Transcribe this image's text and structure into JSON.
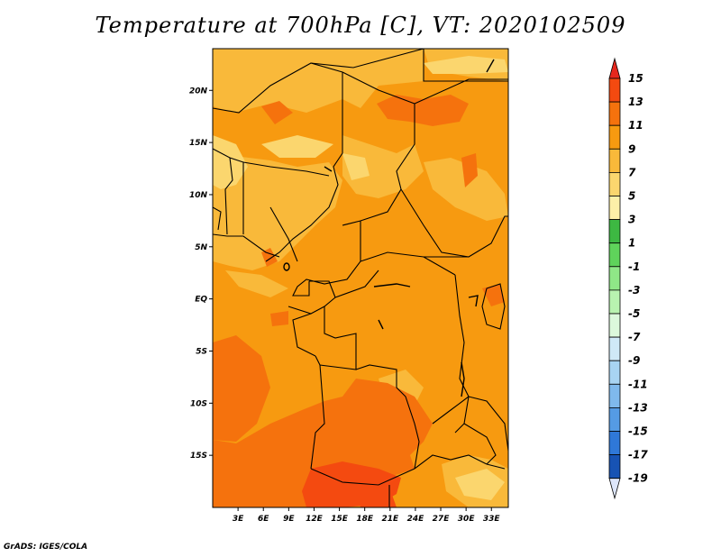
{
  "title": "Temperature at 700hPa [C], VT: 2020102509",
  "credit": "GrADS: IGES/COLA",
  "map": {
    "lon_range": [
      0,
      35
    ],
    "lat_range": [
      -20,
      24
    ],
    "lat_ticks": [
      {
        "value": 20,
        "label": "20N"
      },
      {
        "value": 15,
        "label": "15N"
      },
      {
        "value": 10,
        "label": "10N"
      },
      {
        "value": 5,
        "label": "5N"
      },
      {
        "value": 0,
        "label": "EQ"
      },
      {
        "value": -5,
        "label": "5S"
      },
      {
        "value": -10,
        "label": "10S"
      },
      {
        "value": -15,
        "label": "15S"
      }
    ],
    "lon_ticks": [
      {
        "value": 3,
        "label": "3E"
      },
      {
        "value": 6,
        "label": "6E"
      },
      {
        "value": 9,
        "label": "9E"
      },
      {
        "value": 12,
        "label": "12E"
      },
      {
        "value": 15,
        "label": "15E"
      },
      {
        "value": 18,
        "label": "18E"
      },
      {
        "value": 21,
        "label": "21E"
      },
      {
        "value": 24,
        "label": "24E"
      },
      {
        "value": 27,
        "label": "27E"
      },
      {
        "value": 30,
        "label": "30E"
      },
      {
        "value": 33,
        "label": "33E"
      }
    ]
  },
  "legend": {
    "bands": [
      {
        "color": "#e6271d",
        "upper": 15
      },
      {
        "color": "#f44a10",
        "upper": 13
      },
      {
        "color": "#f5720d",
        "upper": 11
      },
      {
        "color": "#f79a10",
        "upper": 9
      },
      {
        "color": "#f9b93a",
        "upper": 7
      },
      {
        "color": "#fbd66e",
        "upper": 5
      },
      {
        "color": "#fdf0a8",
        "upper": 3
      },
      {
        "color": "#3db842",
        "upper": 1
      },
      {
        "color": "#5fd35b",
        "upper": -1
      },
      {
        "color": "#8fe787",
        "upper": -3
      },
      {
        "color": "#b8f3b0",
        "upper": -5
      },
      {
        "color": "#dcf9dc",
        "upper": -7
      },
      {
        "color": "#cfe9f7",
        "upper": -9
      },
      {
        "color": "#a8d4f2",
        "upper": -11
      },
      {
        "color": "#7fb9ec",
        "upper": -13
      },
      {
        "color": "#559be4",
        "upper": -15
      },
      {
        "color": "#2f78d8",
        "upper": -17
      },
      {
        "color": "#1753b4",
        "upper": -19
      },
      {
        "color": "#0b2a7a",
        "upper": -21
      }
    ],
    "labels": [
      "15",
      "13",
      "11",
      "9",
      "7",
      "5",
      "3",
      "1",
      "-1",
      "-3",
      "-5",
      "-7",
      "-9",
      "-11",
      "-13",
      "-15",
      "-17",
      "-19"
    ],
    "top_color": "#e6271d",
    "bottom_color": "#dde6fa"
  }
}
